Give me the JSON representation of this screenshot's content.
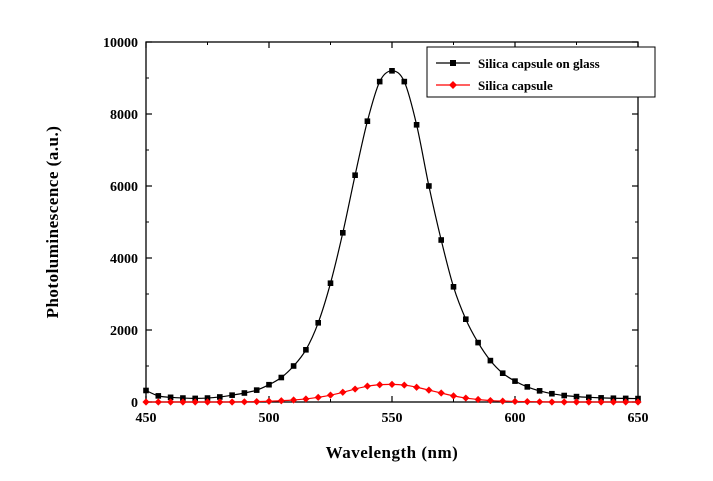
{
  "chart_data": {
    "type": "line",
    "xlabel": "Wavelength (nm)",
    "ylabel": "Photoluminescence (a.u.)",
    "xlim": [
      450,
      650
    ],
    "ylim": [
      0,
      10000
    ],
    "x_ticks": [
      450,
      500,
      550,
      600,
      650
    ],
    "y_ticks": [
      0,
      2000,
      4000,
      6000,
      8000,
      10000
    ],
    "grid": false,
    "legend_position": "top-right",
    "series": [
      {
        "name": "Silica capsule on glass",
        "color": "#000000",
        "marker": "square",
        "peak_x": 550,
        "peak_y": 9200,
        "x": [
          450,
          455,
          460,
          465,
          470,
          475,
          480,
          485,
          490,
          495,
          500,
          505,
          510,
          515,
          520,
          525,
          530,
          535,
          540,
          545,
          550,
          555,
          560,
          565,
          570,
          575,
          580,
          585,
          590,
          595,
          600,
          605,
          610,
          615,
          620,
          625,
          630,
          635,
          640,
          645,
          650
        ],
        "y": [
          320,
          170,
          130,
          110,
          100,
          110,
          140,
          190,
          250,
          330,
          480,
          680,
          1000,
          1450,
          2200,
          3300,
          4700,
          6300,
          7800,
          8900,
          9200,
          8900,
          7700,
          6000,
          4500,
          3200,
          2300,
          1650,
          1150,
          800,
          580,
          420,
          310,
          230,
          180,
          150,
          130,
          115,
          105,
          100,
          95
        ]
      },
      {
        "name": "Silica capsule",
        "color": "#ff0000",
        "marker": "diamond",
        "x": [
          450,
          455,
          460,
          465,
          470,
          475,
          480,
          485,
          490,
          495,
          500,
          505,
          510,
          515,
          520,
          525,
          530,
          535,
          540,
          545,
          550,
          555,
          560,
          565,
          570,
          575,
          580,
          585,
          590,
          595,
          600,
          605,
          610,
          615,
          620,
          625,
          630,
          635,
          640,
          645,
          650
        ],
        "y": [
          0,
          0,
          0,
          0,
          0,
          0,
          0,
          0,
          5,
          10,
          20,
          35,
          55,
          85,
          130,
          190,
          270,
          360,
          440,
          480,
          490,
          470,
          410,
          330,
          250,
          170,
          110,
          70,
          40,
          25,
          15,
          10,
          5,
          0,
          0,
          0,
          0,
          0,
          0,
          0,
          0
        ]
      }
    ]
  }
}
